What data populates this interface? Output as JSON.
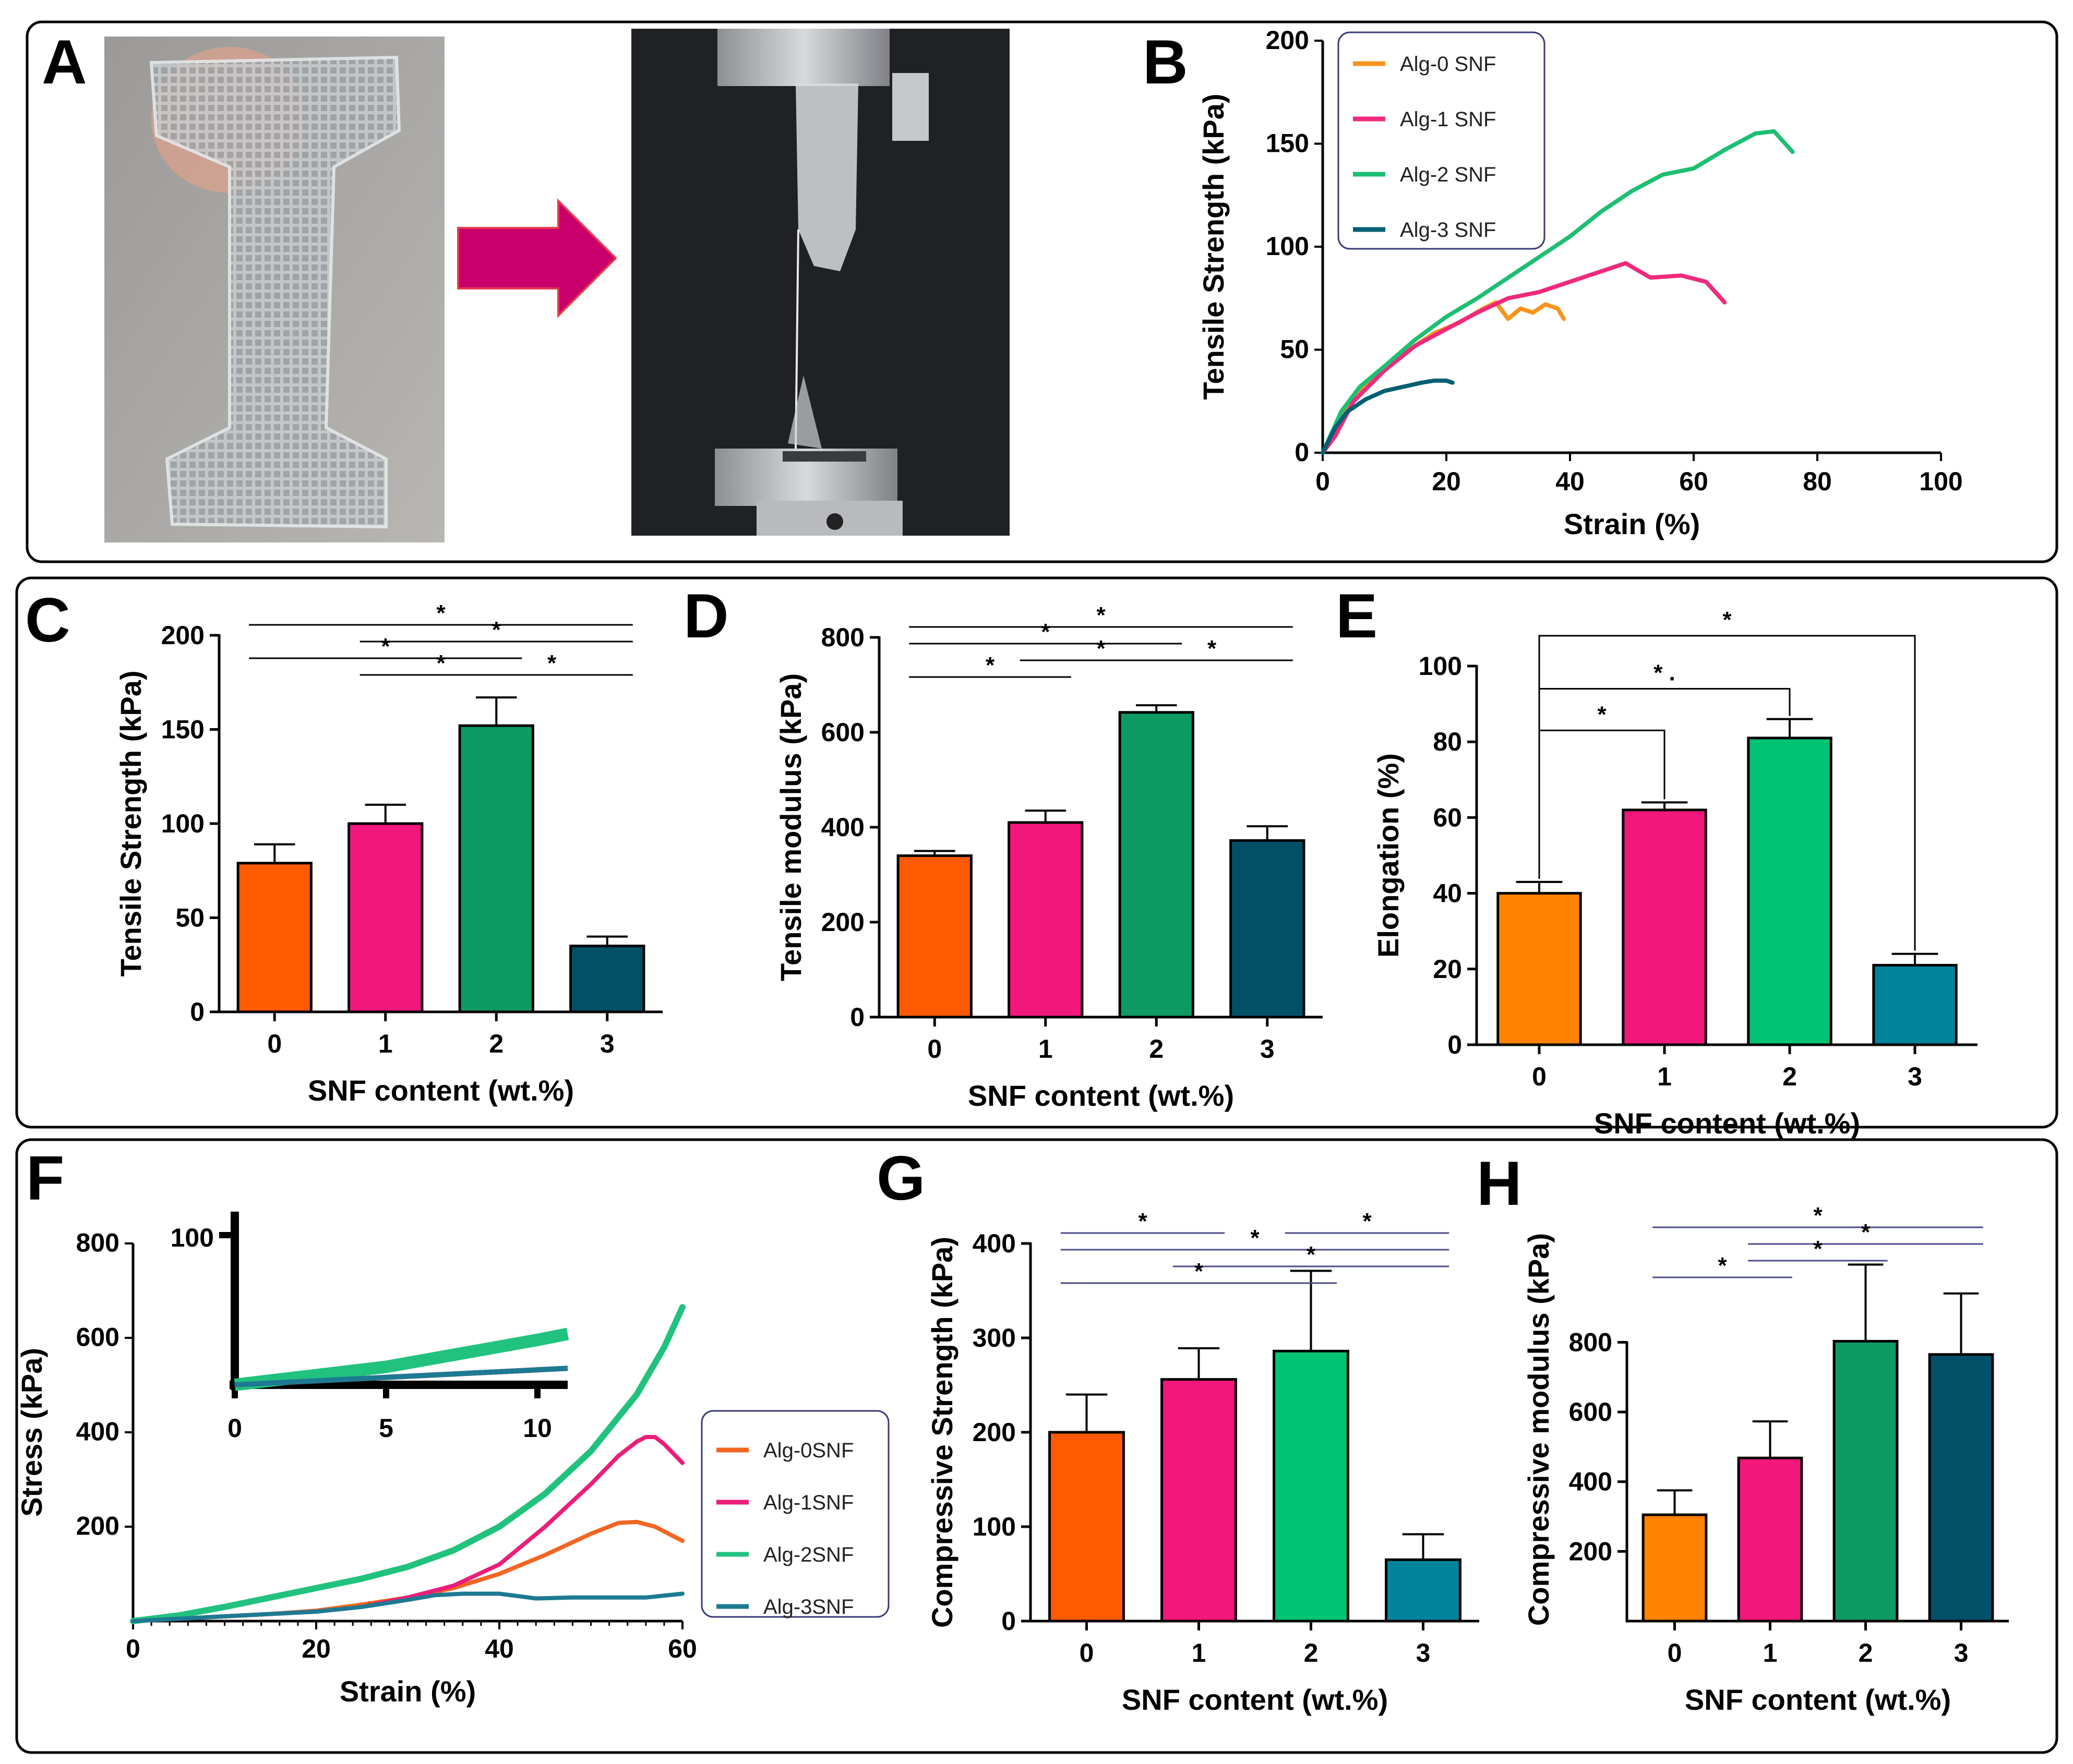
{
  "panel_labels": [
    "A",
    "B",
    "C",
    "D",
    "E",
    "F",
    "G",
    "H"
  ],
  "chart_data": [
    {
      "panel": "B",
      "type": "line",
      "xlabel": "Strain (%)",
      "ylabel": "Tensile Strength (kPa)",
      "xlim": [
        0,
        100
      ],
      "ylim": [
        0,
        200
      ],
      "xticks": [
        0,
        20,
        40,
        60,
        80,
        100
      ],
      "yticks": [
        0,
        50,
        100,
        150,
        200
      ],
      "legend_position": "top-left",
      "series": [
        {
          "name": "Alg-0 SNF",
          "color": "#f7941d",
          "x": [
            0,
            3,
            6,
            10,
            14,
            18,
            22,
            26,
            28,
            30,
            32,
            34,
            36,
            38,
            39
          ],
          "y": [
            0,
            18,
            30,
            40,
            50,
            58,
            63,
            70,
            73,
            65,
            70,
            68,
            72,
            70,
            65
          ]
        },
        {
          "name": "Alg-1 SNF",
          "color": "#ee2a7b",
          "x": [
            0,
            2,
            5,
            10,
            15,
            20,
            25,
            30,
            35,
            40,
            45,
            49,
            53,
            58,
            62,
            65
          ],
          "y": [
            0,
            8,
            25,
            40,
            52,
            60,
            68,
            75,
            78,
            83,
            88,
            92,
            85,
            86,
            83,
            73
          ]
        },
        {
          "name": "Alg-2 SNF",
          "color": "#1dbf73",
          "x": [
            0,
            3,
            6,
            10,
            15,
            20,
            25,
            30,
            35,
            40,
            45,
            50,
            55,
            60,
            65,
            70,
            73,
            76
          ],
          "y": [
            0,
            20,
            32,
            42,
            55,
            66,
            75,
            85,
            95,
            105,
            117,
            127,
            135,
            138,
            147,
            155,
            156,
            146
          ]
        },
        {
          "name": "Alg-3 SNF",
          "color": "#005f73",
          "x": [
            0,
            2,
            4,
            7,
            10,
            13,
            16,
            18,
            20,
            21
          ],
          "y": [
            0,
            12,
            20,
            26,
            30,
            32,
            34,
            35,
            35,
            34
          ]
        }
      ]
    },
    {
      "panel": "C",
      "type": "bar",
      "xlabel": "SNF content (wt.%)",
      "ylabel": "Tensile Strength (kPa)",
      "categories": [
        "0",
        "1",
        "2",
        "3"
      ],
      "values": [
        79,
        100,
        152,
        35
      ],
      "errors": [
        10,
        10,
        15,
        5
      ],
      "colors": [
        "#ff5a00",
        "#f2177d",
        "#0e9a62",
        "#005167"
      ],
      "ylim": [
        0,
        200
      ],
      "yticks": [
        0,
        50,
        100,
        150,
        200
      ],
      "significance": [
        {
          "from": 0,
          "to": 3,
          "level": 0,
          "label": "*"
        },
        {
          "from": 1,
          "to": 3,
          "level": 1,
          "label": "*"
        },
        {
          "from": 0,
          "to": 2,
          "level": 2,
          "label": "*"
        },
        {
          "from": 1,
          "to": 2,
          "level": 3,
          "label": "*"
        },
        {
          "from": 2,
          "to": 3,
          "level": 3,
          "label": "*"
        }
      ]
    },
    {
      "panel": "D",
      "type": "bar",
      "xlabel": "SNF content (wt.%)",
      "ylabel": "Tensile modulus (kPa)",
      "categories": [
        "0",
        "1",
        "2",
        "3"
      ],
      "values": [
        340,
        410,
        642,
        372
      ],
      "errors": [
        10,
        25,
        15,
        30
      ],
      "colors": [
        "#ff5a00",
        "#f2177d",
        "#0e9a62",
        "#005167"
      ],
      "ylim": [
        0,
        800
      ],
      "yticks": [
        0,
        200,
        400,
        600,
        800
      ],
      "significance": [
        {
          "from": 0,
          "to": 3,
          "level": 0,
          "label": "*"
        },
        {
          "from": 0,
          "to": 2,
          "level": 1,
          "label": "*"
        },
        {
          "from": 1,
          "to": 2,
          "level": 2,
          "label": "*"
        },
        {
          "from": 2,
          "to": 3,
          "level": 2,
          "label": "*"
        },
        {
          "from": 0,
          "to": 1,
          "level": 3,
          "label": "*"
        }
      ]
    },
    {
      "panel": "E",
      "type": "bar",
      "xlabel": "SNF content (wt.%)",
      "ylabel": "Elongation (%)",
      "categories": [
        "0",
        "1",
        "2",
        "3"
      ],
      "values": [
        40,
        62,
        81,
        21
      ],
      "errors": [
        3,
        2,
        5,
        3
      ],
      "colors": [
        "#ff8200",
        "#f2177d",
        "#00c374",
        "#00849c"
      ],
      "ylim": [
        0,
        100
      ],
      "yticks": [
        0,
        20,
        40,
        60,
        80,
        100
      ],
      "brackets": [
        {
          "from": 0,
          "to": 3,
          "top": 108,
          "label": "*"
        },
        {
          "from": 0,
          "to": 2,
          "top": 94,
          "label": "* ."
        },
        {
          "from": 0,
          "to": 1,
          "top": 83,
          "label": "*"
        }
      ]
    },
    {
      "panel": "F",
      "type": "line",
      "xlabel": "Strain (%)",
      "ylabel": "Stress (kPa)",
      "xlim": [
        0,
        60
      ],
      "ylim": [
        0,
        800
      ],
      "xticks": [
        0,
        20,
        40,
        60
      ],
      "yticks": [
        200,
        400,
        600,
        800
      ],
      "legend_position": "bottom-right",
      "inset": {
        "xlim": [
          0,
          11
        ],
        "ylim": [
          0,
          100
        ],
        "xticks": [
          0,
          5,
          10
        ],
        "yticks": [
          100
        ]
      },
      "series": [
        {
          "name": "Alg-0SNF",
          "color": "#f26522",
          "x": [
            0,
            5,
            10,
            15,
            20,
            25,
            30,
            35,
            40,
            45,
            50,
            53,
            55,
            57,
            60
          ],
          "y": [
            0,
            5,
            10,
            15,
            22,
            35,
            50,
            70,
            100,
            140,
            185,
            208,
            210,
            200,
            170
          ]
        },
        {
          "name": "Alg-1SNF",
          "color": "#ec1e79",
          "x": [
            0,
            5,
            10,
            15,
            20,
            25,
            30,
            35,
            40,
            45,
            50,
            53,
            55,
            56,
            57,
            58,
            60
          ],
          "y": [
            0,
            5,
            10,
            15,
            20,
            30,
            50,
            75,
            120,
            200,
            290,
            350,
            380,
            390,
            390,
            375,
            335
          ]
        },
        {
          "name": "Alg-2SNF",
          "color": "#21c27e",
          "x": [
            0,
            5,
            10,
            15,
            20,
            25,
            30,
            35,
            40,
            45,
            50,
            55,
            58,
            60
          ],
          "y": [
            0,
            12,
            30,
            50,
            70,
            90,
            115,
            150,
            200,
            270,
            360,
            480,
            580,
            665
          ]
        },
        {
          "name": "Alg-3SNF",
          "color": "#1d7a92",
          "x": [
            0,
            5,
            10,
            15,
            20,
            25,
            30,
            33,
            36,
            40,
            44,
            48,
            52,
            56,
            60
          ],
          "y": [
            0,
            5,
            10,
            15,
            20,
            30,
            45,
            55,
            58,
            58,
            48,
            50,
            50,
            50,
            58
          ]
        }
      ]
    },
    {
      "panel": "G",
      "type": "bar",
      "xlabel": "SNF content (wt.%)",
      "ylabel": "Compressive Strength (kPa)",
      "categories": [
        "0",
        "1",
        "2",
        "3"
      ],
      "values": [
        200,
        256,
        286,
        65
      ],
      "errors": [
        40,
        33,
        85,
        27
      ],
      "colors": [
        "#ff5a00",
        "#f2177d",
        "#00c374",
        "#00849c"
      ],
      "ylim": [
        0,
        400
      ],
      "yticks": [
        0,
        100,
        200,
        300,
        400
      ],
      "significance": [
        {
          "from": 0,
          "to": 1,
          "level": 0,
          "label": "*"
        },
        {
          "from": 2,
          "to": 3,
          "level": 0,
          "label": "*"
        },
        {
          "from": 0,
          "to": 3,
          "level": 1,
          "label": "*"
        },
        {
          "from": 1,
          "to": 3,
          "level": 2,
          "label": "*"
        },
        {
          "from": 0,
          "to": 2,
          "level": 3,
          "label": "*"
        }
      ]
    },
    {
      "panel": "H",
      "type": "bar",
      "xlabel": "SNF content (wt.%)",
      "ylabel": "Compressive modulus  (kPa)",
      "categories": [
        "0",
        "1",
        "2",
        "3"
      ],
      "values": [
        305,
        468,
        803,
        765
      ],
      "errors": [
        70,
        105,
        220,
        175
      ],
      "colors": [
        "#ff8200",
        "#f2177d",
        "#0e9a62",
        "#005167"
      ],
      "ylim": [
        0,
        1100
      ],
      "yticks": [
        200,
        400,
        600,
        800
      ],
      "significance": [
        {
          "from": 0,
          "to": 3,
          "level": 0,
          "label": "*"
        },
        {
          "from": 1,
          "to": 3,
          "level": 1,
          "label": "*"
        },
        {
          "from": 1,
          "to": 2,
          "level": 2,
          "label": "*"
        },
        {
          "from": 0,
          "to": 1,
          "level": 3,
          "label": "*"
        }
      ]
    }
  ]
}
